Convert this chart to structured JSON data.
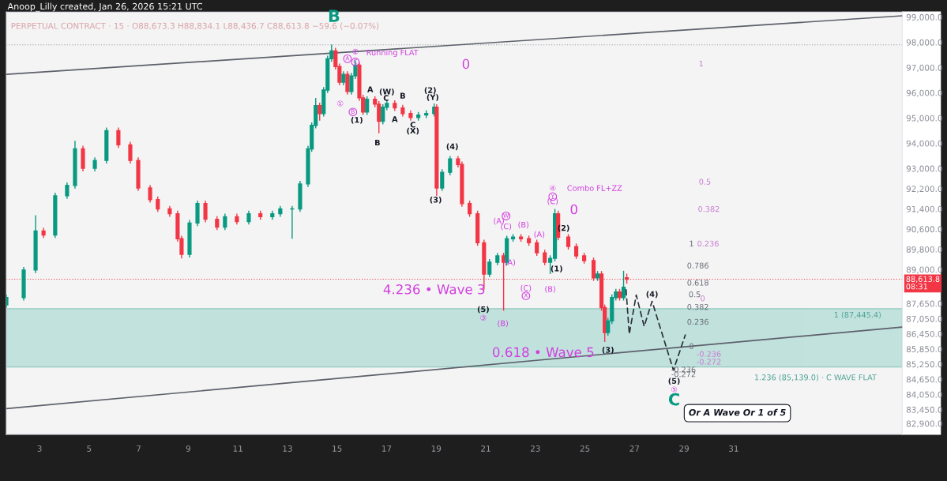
{
  "chart_data": {
    "type": "candlestick",
    "title": "Anoop_Lilly created, Jan 26, 2026 15:21 UTC",
    "subtitle": "PERPETUAL CONTRACT · 15 · O88,673.3 H88,834.1 L88,436.7 C88,613.8 −59.6 (−0.07%)",
    "x": [
      1.66,
      2.36,
      2.84,
      3.16,
      3.63,
      4.11,
      4.43,
      4.75,
      5.23,
      5.7,
      6.18,
      6.66,
      6.98,
      7.46,
      7.77,
      8.25,
      8.57,
      8.73,
      9.05,
      9.37,
      9.69,
      10.16,
      10.48,
      10.96,
      11.44,
      11.91,
      12.39,
      12.71,
      13.19,
      13.51,
      13.83,
      13.98,
      14.14,
      14.3,
      14.46,
      14.62,
      14.78,
      14.94,
      15.1,
      15.26,
      15.42,
      15.58,
      15.74,
      15.9,
      16.05,
      16.21,
      16.53,
      16.69,
      16.85,
      17.01,
      17.33,
      17.65,
      17.97,
      18.28,
      18.6,
      18.92,
      19.02,
      19.24,
      19.56,
      19.88,
      20.04,
      20.35,
      20.67,
      20.93,
      21.15,
      21.47,
      21.72,
      21.85,
      22.1,
      22.42,
      22.74,
      23.06,
      23.38,
      23.6,
      23.79,
      23.92,
      24.33,
      24.65,
      24.97,
      25.35,
      25.51,
      25.67,
      25.8,
      25.93,
      26.09,
      26.25,
      26.4,
      26.56,
      26.69
    ],
    "ohlc": [
      [
        87600,
        88010,
        87480,
        87890
      ],
      [
        87890,
        89100,
        87770,
        88980
      ],
      [
        88980,
        91150,
        88860,
        90530
      ],
      [
        90530,
        90650,
        90250,
        90370
      ],
      [
        90370,
        92040,
        90250,
        91920
      ],
      [
        91920,
        92450,
        91800,
        92330
      ],
      [
        92330,
        94100,
        92210,
        93780
      ],
      [
        93780,
        93900,
        92890,
        93010
      ],
      [
        93010,
        93440,
        92890,
        93320
      ],
      [
        93320,
        94620,
        93200,
        94500
      ],
      [
        94500,
        94620,
        93820,
        93940
      ],
      [
        93940,
        94060,
        93200,
        93320
      ],
      [
        93320,
        93440,
        92110,
        92230
      ],
      [
        92230,
        92350,
        91650,
        91770
      ],
      [
        91770,
        91890,
        91280,
        91400
      ],
      [
        91400,
        91520,
        91090,
        91210
      ],
      [
        91210,
        91330,
        90100,
        90220
      ],
      [
        90220,
        90340,
        89440,
        89600
      ],
      [
        89600,
        90960,
        89480,
        90840
      ],
      [
        90840,
        91730,
        90720,
        91610
      ],
      [
        91610,
        91730,
        90870,
        90990
      ],
      [
        90990,
        91110,
        90560,
        90680
      ],
      [
        90680,
        91210,
        90560,
        91090
      ],
      [
        91090,
        91210,
        90780,
        90900
      ],
      [
        90900,
        91330,
        90780,
        91210
      ],
      [
        91210,
        91330,
        90970,
        91090
      ],
      [
        91090,
        91330,
        90970,
        91210
      ],
      [
        91210,
        91520,
        91090,
        91400
      ],
      [
        91400,
        91520,
        90220,
        91400
      ],
      [
        91400,
        92510,
        91280,
        92390
      ],
      [
        92390,
        93900,
        92270,
        93780
      ],
      [
        93780,
        94830,
        93660,
        94710
      ],
      [
        94710,
        95800,
        94590,
        95490
      ],
      [
        95490,
        95610,
        94900,
        95180
      ],
      [
        95180,
        96230,
        95060,
        96110
      ],
      [
        96110,
        97470,
        95990,
        97350
      ],
      [
        97350,
        97910,
        97230,
        97660
      ],
      [
        97660,
        97780,
        96920,
        97040
      ],
      [
        97040,
        97160,
        96300,
        96420
      ],
      [
        96420,
        96850,
        96300,
        96730
      ],
      [
        96730,
        96850,
        95930,
        96050
      ],
      [
        96050,
        96790,
        95930,
        96670
      ],
      [
        96670,
        97290,
        96550,
        97100
      ],
      [
        97100,
        97220,
        95680,
        95800
      ],
      [
        95800,
        95920,
        95120,
        95240
      ],
      [
        95240,
        95860,
        95120,
        95740
      ],
      [
        95740,
        95860,
        95430,
        95550
      ],
      [
        95550,
        95670,
        94400,
        94870
      ],
      [
        94870,
        95550,
        94750,
        95430
      ],
      [
        95430,
        95700,
        95310,
        95580
      ],
      [
        95580,
        95700,
        95280,
        95400
      ],
      [
        95400,
        95520,
        95060,
        95180
      ],
      [
        95180,
        95300,
        94900,
        95020
      ],
      [
        95020,
        95240,
        94900,
        95120
      ],
      [
        95120,
        95300,
        95000,
        95180
      ],
      [
        95180,
        95580,
        95060,
        95430
      ],
      [
        95430,
        95550,
        91920,
        92230
      ],
      [
        92230,
        92970,
        92110,
        92850
      ],
      [
        92850,
        93500,
        92730,
        93380
      ],
      [
        93380,
        93500,
        93040,
        93160
      ],
      [
        93160,
        93280,
        91490,
        91610
      ],
      [
        91610,
        91730,
        91090,
        91210
      ],
      [
        91210,
        91330,
        89940,
        90060
      ],
      [
        90060,
        90180,
        88200,
        88820
      ],
      [
        88820,
        89410,
        88700,
        89290
      ],
      [
        89290,
        89660,
        89170,
        89540
      ],
      [
        89540,
        89660,
        87370,
        89290
      ],
      [
        89290,
        90340,
        89170,
        90220
      ],
      [
        90220,
        90400,
        90100,
        90280
      ],
      [
        90280,
        90400,
        90100,
        90220
      ],
      [
        90220,
        90340,
        89940,
        90060
      ],
      [
        90060,
        90180,
        89540,
        89660
      ],
      [
        89660,
        89780,
        89170,
        89290
      ],
      [
        89290,
        89560,
        88820,
        89440
      ],
      [
        89440,
        91400,
        89320,
        91210
      ],
      [
        91210,
        91330,
        90160,
        90280
      ],
      [
        90280,
        90400,
        89790,
        89910
      ],
      [
        89910,
        90030,
        89420,
        89540
      ],
      [
        89540,
        89660,
        89230,
        89350
      ],
      [
        89350,
        89470,
        88550,
        88670
      ],
      [
        88670,
        88940,
        88550,
        88820
      ],
      [
        88820,
        88940,
        87370,
        87490
      ],
      [
        87490,
        87610,
        86130,
        86500
      ],
      [
        86500,
        87080,
        86380,
        86960
      ],
      [
        86960,
        88010,
        86840,
        87890
      ],
      [
        87890,
        88230,
        87770,
        88110
      ],
      [
        88110,
        88230,
        87770,
        87890
      ],
      [
        87890,
        88950,
        87770,
        88300
      ],
      [
        88673.3,
        88834.1,
        88436.7,
        88613.8
      ]
    ],
    "series": [
      {
        "type": "line",
        "x": [
          1.66,
          37.8
        ],
        "values": [
          96730,
          99050
        ],
        "color": "#5d606b",
        "line_style": "solid"
      },
      {
        "type": "line",
        "x": [
          1.66,
          37.8
        ],
        "values": [
          83490,
          86720
        ],
        "color": "#5d606b",
        "line_style": "solid"
      },
      {
        "type": "line",
        "x": [
          26.66,
          26.79,
          27.07,
          27.39,
          27.71,
          28.57,
          29.05
        ],
        "values": [
          88200,
          86440,
          87990,
          86750,
          87740,
          85010,
          86410
        ],
        "color": "#2a2e39",
        "line_style": "dashed"
      }
    ],
    "xlim": [
      1.66,
      37.8
    ],
    "xticks": [
      3,
      5,
      7,
      9,
      11,
      13,
      15,
      17,
      19,
      21,
      23,
      25,
      27,
      29,
      31
    ],
    "ylim": [
      82470,
      99200
    ],
    "yticks": [
      {
        "value": 99000,
        "label": "99,000.0"
      },
      {
        "value": 98000,
        "label": "98,000.0"
      },
      {
        "value": 97000,
        "label": "97,000.0"
      },
      {
        "value": 96000,
        "label": "96,000.0"
      },
      {
        "value": 95000,
        "label": "95,000.0"
      },
      {
        "value": 94000,
        "label": "94,000.0"
      },
      {
        "value": 93000,
        "label": "93,000.0"
      },
      {
        "value": 92200,
        "label": "92,200.0"
      },
      {
        "value": 91400,
        "label": "91,400.0"
      },
      {
        "value": 90600,
        "label": "90,600.0"
      },
      {
        "value": 89800,
        "label": "89,800.0"
      },
      {
        "value": 89000,
        "label": "89,000.0"
      },
      {
        "value": 87650,
        "label": "87,650.0"
      },
      {
        "value": 87050,
        "label": "87,050.0"
      },
      {
        "value": 86450,
        "label": "86,450.0"
      },
      {
        "value": 85850,
        "label": "85,850.0"
      },
      {
        "value": 85250,
        "label": "85,250.0"
      },
      {
        "value": 84650,
        "label": "84,650.0"
      },
      {
        "value": 84050,
        "label": "84,050.0"
      },
      {
        "value": 83450,
        "label": "83,450.0"
      },
      {
        "value": 82900,
        "label": "82,900.0"
      }
    ],
    "ref_lines": [
      {
        "axis": "y",
        "value": 97900,
        "color": "#9598a1",
        "line_style": "dotted"
      },
      {
        "axis": "y",
        "value": 88613.8,
        "label": "88,613.8\n08:31",
        "color": "#f23645",
        "line_style": "dotted"
      }
    ],
    "bands": [
      {
        "axis": "y",
        "from": 85139.0,
        "to": 87445.4,
        "color": "#b9ded9"
      }
    ],
    "annotations": [
      "B",
      "A",
      "②",
      "Running FLAT",
      "C",
      "①",
      "B",
      "(1)",
      "A",
      "(W)",
      "C",
      "B",
      "A",
      "B",
      "C",
      "(X)",
      "(2)",
      "(Y)",
      "(4)",
      "(3)",
      "0",
      "④",
      "Combo FL+ZZ",
      "Y",
      "(C)",
      "0",
      "(A)",
      "W",
      "(C)",
      "(B)",
      "(A)",
      "(2)",
      "(1)",
      "(A)",
      "(C)",
      "X",
      "(B)",
      "4.236 • Wave 3",
      "(5)",
      "③",
      "(B)",
      "0.618 • Wave 5",
      "(3)",
      "(4)",
      "(5)",
      "⑤",
      "C",
      "Or A Wave Or 1 of 5",
      "1",
      "0.5",
      "0.382",
      "1",
      "0.236",
      "0.786",
      "0.618",
      "0.5",
      "0",
      "0.382",
      "0.236",
      "0",
      "-0.236",
      "-0.272",
      "-0.236",
      "-0.272",
      "1 (87,445.4)",
      "1.236 (85,139.0) · C WAVE FLAT"
    ],
    "legend": false,
    "grid": false
  }
}
